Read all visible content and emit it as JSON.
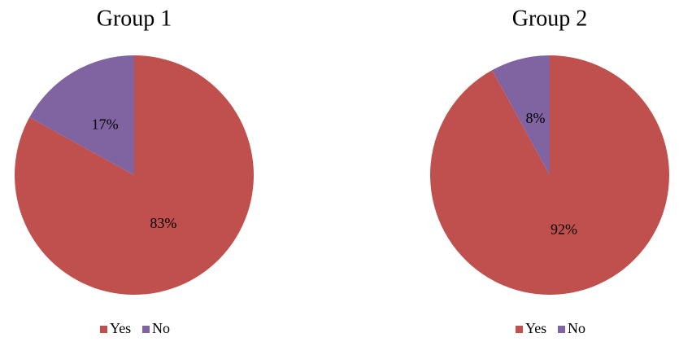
{
  "chart_data": [
    {
      "type": "pie",
      "title": "Group 1",
      "categories": [
        "Yes",
        "No"
      ],
      "values": [
        83,
        17
      ],
      "value_labels": [
        "83%",
        "17%"
      ],
      "colors": [
        "#c0504d",
        "#8064a2"
      ]
    },
    {
      "type": "pie",
      "title": "Group 2",
      "categories": [
        "Yes",
        "No"
      ],
      "values": [
        92,
        8
      ],
      "value_labels": [
        "92%",
        "8%"
      ],
      "colors": [
        "#c0504d",
        "#8064a2"
      ]
    }
  ]
}
